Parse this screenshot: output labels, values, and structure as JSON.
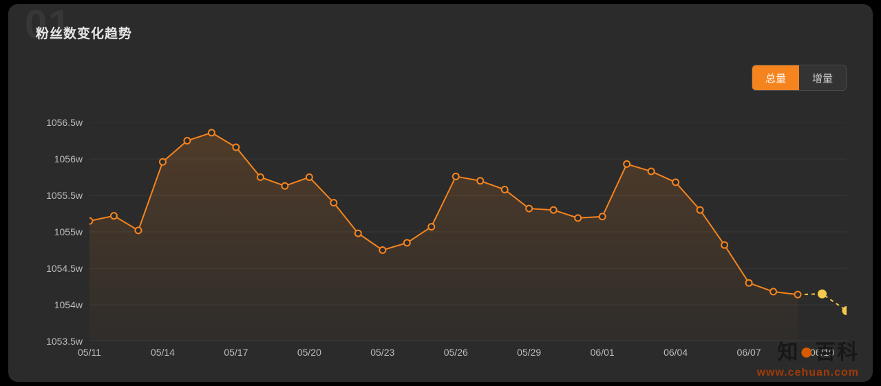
{
  "bg_number": "01",
  "title": "粉丝数变化趋势",
  "toggle": {
    "total": "总量",
    "delta": "增量",
    "active": "total"
  },
  "chart": {
    "type": "area-line",
    "line_color": "#f5841f",
    "line_width": 2,
    "marker_fill": "#2b2b2b",
    "marker_stroke": "#f5841f",
    "marker_r": 4.5,
    "marker_stroke_w": 2,
    "area_top_color": "rgba(245,132,31,0.18)",
    "area_bot_color": "rgba(245,132,31,0.02)",
    "dash_color": "#f5c94a",
    "dash_marker_fill": "#f5c94a",
    "grid_color": "rgba(255,255,255,0.07)",
    "baseline_color": "rgba(255,255,255,0.18)",
    "background_color": "#2b2b2b",
    "y": {
      "min": 1053.5,
      "max": 1056.5,
      "step": 0.5,
      "suffix": "w",
      "ticks": [
        1053.5,
        1054,
        1054.5,
        1055,
        1055.5,
        1056,
        1056.5
      ]
    },
    "x": {
      "dates": [
        "05/11",
        "05/12",
        "05/13",
        "05/14",
        "05/15",
        "05/16",
        "05/17",
        "05/18",
        "05/19",
        "05/20",
        "05/21",
        "05/22",
        "05/23",
        "05/24",
        "05/25",
        "05/26",
        "05/27",
        "05/28",
        "05/29",
        "05/30",
        "05/31",
        "06/01",
        "06/02",
        "06/03",
        "06/04",
        "06/05",
        "06/06",
        "06/07",
        "06/08",
        "06/09",
        "06/10",
        "06/11"
      ],
      "tick_every": 3
    },
    "series_solid": [
      1055.15,
      1055.22,
      1055.02,
      1055.96,
      1056.25,
      1056.36,
      1056.16,
      1055.75,
      1055.63,
      1055.75,
      1055.4,
      1054.98,
      1054.75,
      1054.85,
      1055.07,
      1055.76,
      1055.7,
      1055.58,
      1055.32,
      1055.3,
      1055.19,
      1055.21,
      1055.93,
      1055.83,
      1055.68,
      1055.3,
      1054.82,
      1054.3,
      1054.18,
      1054.14
    ],
    "series_dashed": [
      1054.14,
      1054.15,
      1053.92
    ],
    "label_fontsize": 14,
    "label_color": "#bdbdbd"
  },
  "watermark": {
    "cn_pre": "知",
    "cn_dot": "●",
    "cn_post": "百科",
    "url": "www.cehuan.com"
  }
}
